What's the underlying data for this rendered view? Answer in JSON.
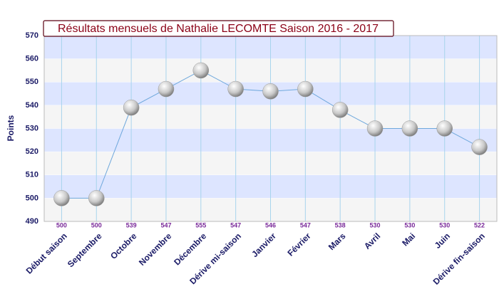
{
  "chart_data": {
    "type": "line",
    "title": "Résultats mensuels de Nathalie LECOMTE Saison 2016 - 2017",
    "y_label": "Points",
    "categories": [
      "Début saison",
      "Septembre",
      "Octobre",
      "Novembre",
      "Décembre",
      "Dérive mi-saison",
      "Janvier",
      "Février",
      "Mars",
      "Avril",
      "Mai",
      "Juin",
      "Dérive fin-saison"
    ],
    "series": [
      {
        "name": "Points",
        "color": "#6fa8dc",
        "values": [
          500,
          500,
          539,
          547,
          555,
          547,
          546,
          547,
          538,
          530,
          530,
          530,
          522
        ]
      }
    ],
    "ylim": [
      490,
      570
    ],
    "yticks": [
      490,
      500,
      510,
      520,
      530,
      540,
      550,
      560,
      570
    ],
    "grid": true
  }
}
